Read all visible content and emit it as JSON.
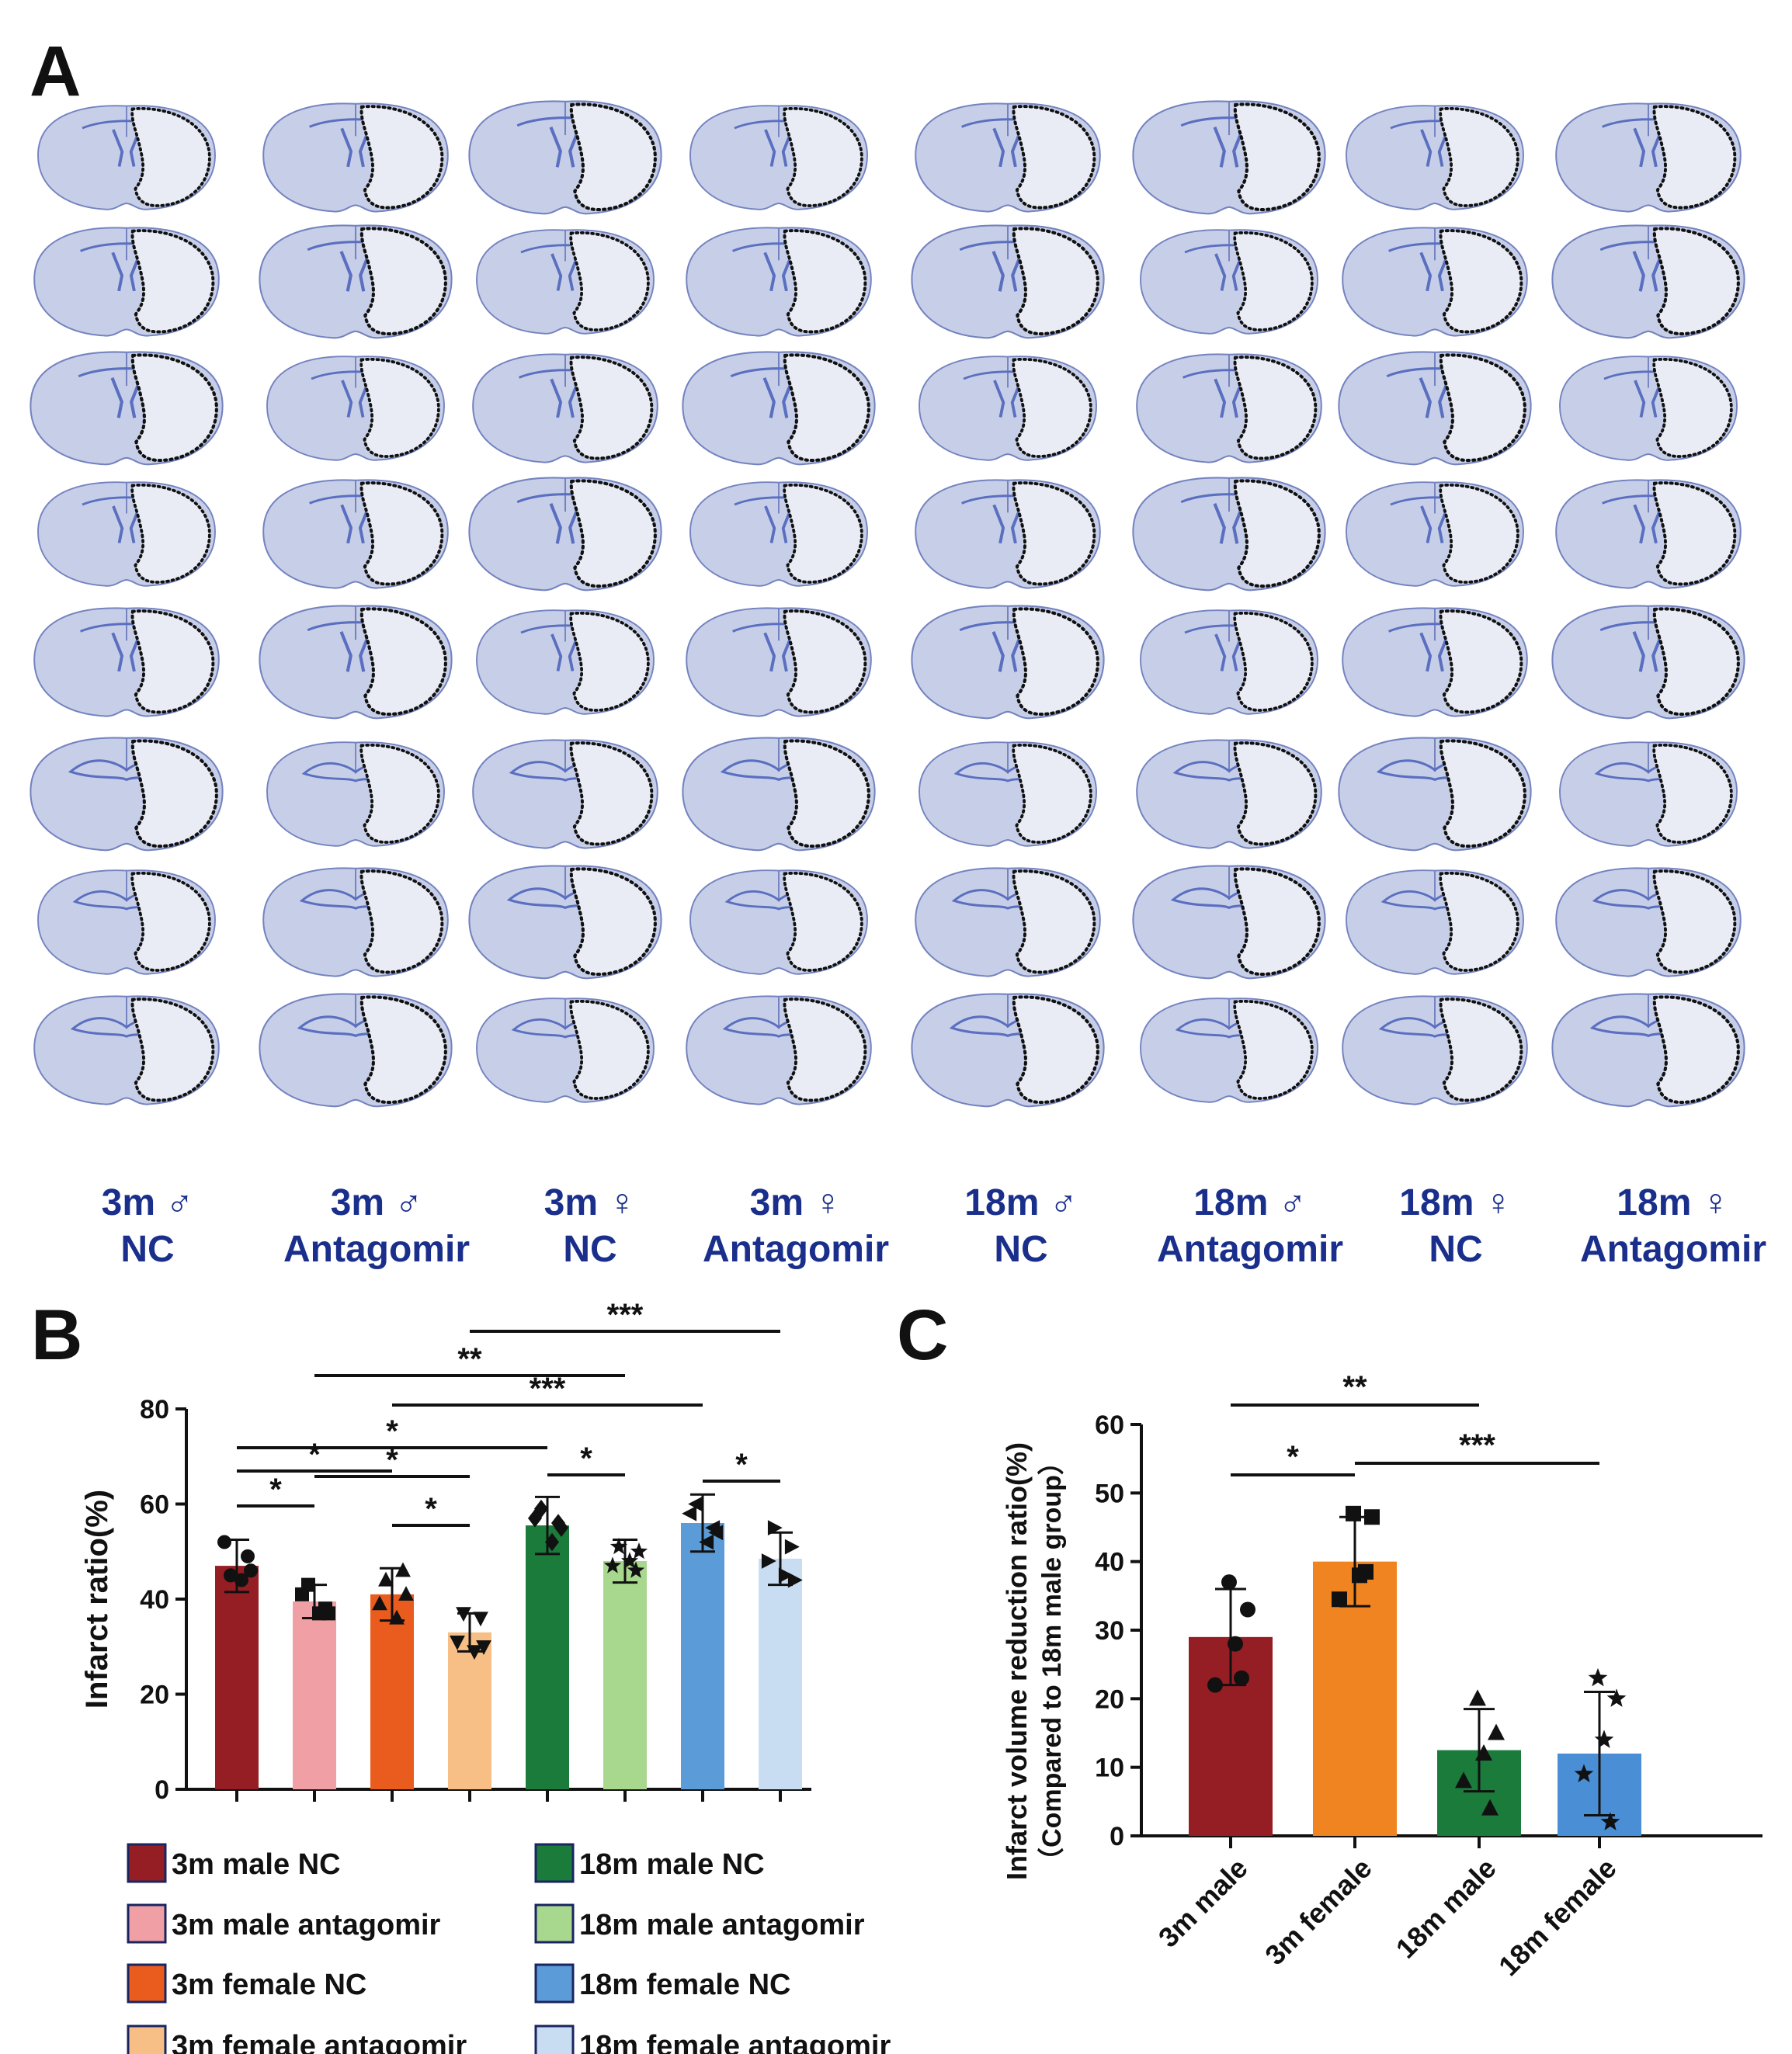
{
  "panels": {
    "a": "A",
    "b": "B",
    "c": "C"
  },
  "groups": [
    {
      "line1": "3m ♂",
      "line2": "NC"
    },
    {
      "line1": "3m ♂",
      "line2": "Antagomir"
    },
    {
      "line1": "3m ♀",
      "line2": "NC"
    },
    {
      "line1": "3m ♀",
      "line2": "Antagomir"
    },
    {
      "line1": "18m ♂",
      "line2": "NC"
    },
    {
      "line1": "18m ♂",
      "line2": "Antagomir"
    },
    {
      "line1": "18m ♀",
      "line2": "NC"
    },
    {
      "line1": "18m ♀",
      "line2": "Antagomir"
    }
  ],
  "colors": {
    "tissue": "#c7cfe8",
    "tissue_dark": "#7483c0",
    "infarct": "#e9ecf5",
    "ventricle": "#5a6fc0",
    "3m_male_nc": "#951e25",
    "3m_male_ant": "#f0a0a4",
    "3m_female_nc": "#ea5b1e",
    "3m_female_ant": "#f7bf86",
    "18m_male_nc": "#1a7b3a",
    "18m_male_ant": "#a8d78e",
    "18m_female_nc": "#5a9bd8",
    "18m_female_ant": "#c8dcf2",
    "c_3m_male": "#951e25",
    "c_3m_female": "#f08420",
    "c_18m_male": "#1a7b3a",
    "c_18m_female": "#4a8fd6"
  },
  "chart_data": [
    {
      "type": "bar",
      "panel": "B",
      "ylabel": "Infarct ratio(%)",
      "ylim": [
        0,
        80
      ],
      "yticks": [
        "0",
        "20",
        "40",
        "60",
        "80"
      ],
      "series": [
        {
          "name": "3m male NC",
          "mean": 47,
          "sd": 5.5,
          "points": [
            45,
            49,
            52,
            44,
            46
          ],
          "marker": "circle",
          "color_key": "3m_male_nc"
        },
        {
          "name": "3m male antagomir",
          "mean": 39.5,
          "sd": 3.5,
          "points": [
            43,
            38,
            41,
            37,
            37
          ],
          "marker": "square",
          "color_key": "3m_male_ant"
        },
        {
          "name": "3m female NC",
          "mean": 41,
          "sd": 5.5,
          "points": [
            44,
            46,
            39,
            36,
            41
          ],
          "marker": "triangle-up",
          "color_key": "3m_female_nc"
        },
        {
          "name": "3m female antagomir",
          "mean": 33,
          "sd": 4,
          "points": [
            37,
            36,
            31,
            29,
            30
          ],
          "marker": "triangle-down",
          "color_key": "3m_female_ant"
        },
        {
          "name": "18m male NC",
          "mean": 55.5,
          "sd": 6,
          "points": [
            59,
            56,
            57,
            52,
            55
          ],
          "marker": "diamond",
          "color_key": "18m_male_nc"
        },
        {
          "name": "18m male antagomir",
          "mean": 48,
          "sd": 4.5,
          "points": [
            51,
            46,
            47,
            48,
            50
          ],
          "marker": "star",
          "color_key": "18m_male_ant"
        },
        {
          "name": "18m female NC",
          "mean": 56,
          "sd": 6,
          "points": [
            60,
            55,
            58,
            52,
            54
          ],
          "marker": "triangle-left",
          "color_key": "18m_female_nc"
        },
        {
          "name": "18m female antagomir",
          "mean": 48.5,
          "sd": 5.5,
          "points": [
            55,
            51,
            48,
            45,
            44
          ],
          "marker": "triangle-right",
          "color_key": "18m_female_ant"
        }
      ],
      "significance": [
        {
          "from": 0,
          "to": 1,
          "label": "*"
        },
        {
          "from": 0,
          "to": 2,
          "label": "*"
        },
        {
          "from": 2,
          "to": 3,
          "label": "*"
        },
        {
          "from": 1,
          "to": 3,
          "label": "*"
        },
        {
          "from": 0,
          "to": 4,
          "label": "*"
        },
        {
          "from": 4,
          "to": 5,
          "label": "*"
        },
        {
          "from": 6,
          "to": 7,
          "label": "*"
        },
        {
          "from": 2,
          "to": 6,
          "label": "***"
        },
        {
          "from": 1,
          "to": 5,
          "label": "**"
        },
        {
          "from": 3,
          "to": 7,
          "label": "***"
        }
      ]
    },
    {
      "type": "bar",
      "panel": "C",
      "ylabel": "Infarct volume reduction ratio(%)",
      "ylabel2": "（Compared to 18m male group）",
      "ylim": [
        0,
        60
      ],
      "yticks": [
        "0",
        "10",
        "20",
        "30",
        "40",
        "50",
        "60"
      ],
      "categories": [
        "3m male",
        "3m female",
        "18m male",
        "18m female"
      ],
      "series": [
        {
          "name": "3m male",
          "mean": 29,
          "sd": 7,
          "points": [
            37,
            33,
            28,
            22,
            23
          ],
          "marker": "circle",
          "color_key": "c_3m_male"
        },
        {
          "name": "3m female",
          "mean": 40,
          "sd": 6.5,
          "points": [
            47,
            46.5,
            38,
            34.5,
            38.5
          ],
          "marker": "square",
          "color_key": "c_3m_female"
        },
        {
          "name": "18m male",
          "mean": 12.5,
          "sd": 6,
          "points": [
            20,
            15,
            12,
            8,
            4
          ],
          "marker": "triangle-up",
          "color_key": "c_18m_male"
        },
        {
          "name": "18m female",
          "mean": 12,
          "sd": 9,
          "points": [
            23,
            20,
            14,
            9,
            2
          ],
          "marker": "star",
          "color_key": "c_18m_female"
        }
      ],
      "significance": [
        {
          "from": 0,
          "to": 1,
          "label": "*"
        },
        {
          "from": 0,
          "to": 2,
          "label": "**"
        },
        {
          "from": 1,
          "to": 3,
          "label": "***"
        }
      ]
    }
  ]
}
